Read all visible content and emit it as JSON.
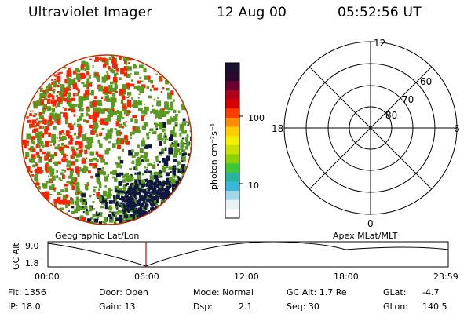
{
  "header": {
    "title": "Ultraviolet Imager",
    "date": "12 Aug 00",
    "time": "05:52:56 UT"
  },
  "colorbar": {
    "unit_label": "photon cm⁻²s⁻¹",
    "ticks": [
      "100",
      "10"
    ],
    "colors": [
      "#1a1033",
      "#2a0a2a",
      "#6a0030",
      "#b0001c",
      "#d90000",
      "#ff3c00",
      "#ff8c00",
      "#ffcc00",
      "#f5f000",
      "#c8e000",
      "#8cd200",
      "#3cc832",
      "#2ab4a0",
      "#3ab8d8",
      "#a0d8e8",
      "#e6f2f4",
      "#ffffff"
    ]
  },
  "polar": {
    "labels": {
      "top": "12",
      "left": "18",
      "right": "6",
      "bottom": "0"
    },
    "rings": [
      "80",
      "70",
      "60"
    ]
  },
  "timeline": {
    "left_label": "Geographic Lat/Lon",
    "right_label": "Apex MLat/MLT",
    "y_axis_label": "GC Alt",
    "y_ticks": [
      "9.0",
      "1.8"
    ],
    "x_ticks": [
      "00:00",
      "06:00",
      "12:00",
      "18:00",
      "23:59"
    ],
    "marker_time": "05:52:56"
  },
  "info": {
    "flt": "Flt: 1356",
    "ip": "IP: 18.0",
    "door": "Door: Open",
    "gain": "Gain: 13",
    "mode": "Mode: Normal",
    "dsp_label": "Dsp:",
    "dsp_value": "2.1",
    "gc_alt": "GC Alt: 1.7 Re",
    "seq": "Seq: 30",
    "glat_label": "GLat:",
    "glat_value": "-4.7",
    "glon_label": "GLon:",
    "glon_value": "140.5"
  },
  "colors": {
    "red": "#ff2200",
    "green": "#5a9a20",
    "navy": "#101840",
    "marker": "#d00000"
  }
}
